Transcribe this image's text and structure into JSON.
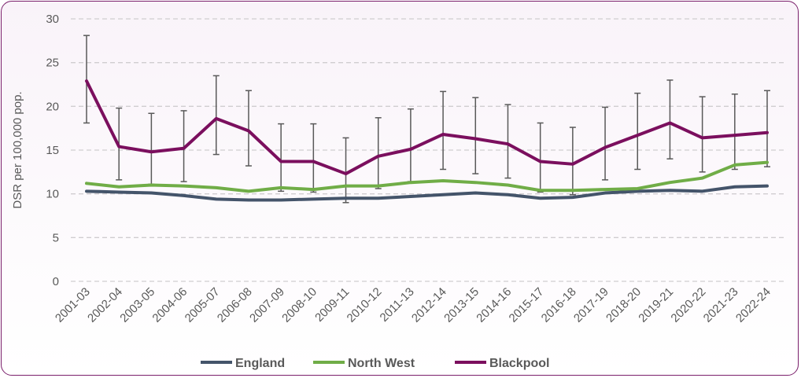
{
  "chart_data": {
    "type": "line",
    "title": "",
    "xlabel": "",
    "ylabel": "DSR per 100,000 pop.",
    "ylim": [
      0,
      30
    ],
    "yticks": [
      0,
      5,
      10,
      15,
      20,
      25,
      30
    ],
    "grid": true,
    "legend_position": "bottom",
    "categories": [
      "2001-03",
      "2002-04",
      "2003-05",
      "2004-06",
      "2005-07",
      "2006-08",
      "2007-09",
      "2008-10",
      "2009-11",
      "2010-12",
      "2011-13",
      "2012-14",
      "2013-15",
      "2014-16",
      "2015-17",
      "2016-18",
      "2017-19",
      "2018-20",
      "2019-21",
      "2020-22",
      "2021-23",
      "2022-24"
    ],
    "series": [
      {
        "name": "England",
        "color": "#44546a",
        "values": [
          10.3,
          10.2,
          10.1,
          9.8,
          9.4,
          9.3,
          9.3,
          9.4,
          9.5,
          9.5,
          9.7,
          9.9,
          10.1,
          9.9,
          9.5,
          9.6,
          10.1,
          10.3,
          10.4,
          10.3,
          10.8,
          10.9
        ]
      },
      {
        "name": "North West",
        "color": "#70ad47",
        "values": [
          11.2,
          10.8,
          11.0,
          10.9,
          10.7,
          10.3,
          10.7,
          10.5,
          10.9,
          10.9,
          11.3,
          11.5,
          11.3,
          11.0,
          10.4,
          10.4,
          10.5,
          10.6,
          11.3,
          11.8,
          13.3,
          13.6
        ]
      },
      {
        "name": "Blackpool",
        "color": "#7b0f5e",
        "values": [
          22.9,
          15.4,
          14.8,
          15.2,
          18.6,
          17.2,
          13.7,
          13.7,
          12.3,
          14.3,
          15.1,
          16.8,
          16.3,
          15.7,
          13.7,
          13.4,
          15.3,
          16.7,
          18.1,
          16.4,
          16.7,
          17.0
        ],
        "ci_lower": [
          18.1,
          11.6,
          11.1,
          11.4,
          14.5,
          13.2,
          10.3,
          10.2,
          9.0,
          10.6,
          11.4,
          12.8,
          12.3,
          11.8,
          10.2,
          9.9,
          11.6,
          12.8,
          14.0,
          12.5,
          12.8,
          13.1
        ],
        "ci_upper": [
          28.1,
          19.8,
          19.2,
          19.5,
          23.5,
          21.8,
          18.0,
          18.0,
          16.4,
          18.7,
          19.7,
          21.7,
          21.0,
          20.2,
          18.1,
          17.6,
          19.9,
          21.5,
          23.0,
          21.1,
          21.4,
          21.8
        ]
      }
    ]
  }
}
